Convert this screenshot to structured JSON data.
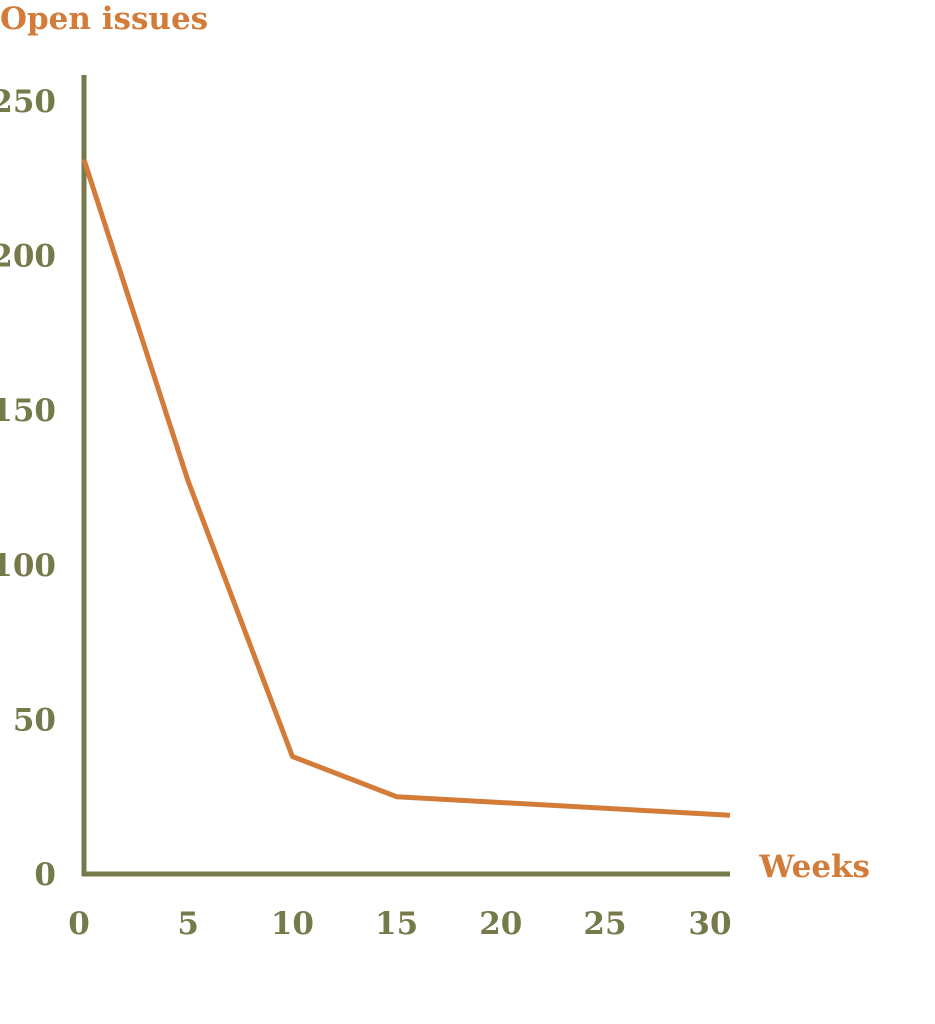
{
  "chart_data": {
    "type": "line",
    "ylabel": "Open issues",
    "xlabel": "Weeks",
    "x_ticks": [
      "0",
      "5",
      "10",
      "15",
      "20",
      "25",
      "30"
    ],
    "y_ticks": [
      "0",
      "50",
      "100",
      "150",
      "200",
      "250"
    ],
    "xlim": [
      0,
      31
    ],
    "ylim": [
      0,
      250
    ],
    "grid": false,
    "series": [
      {
        "x": [
          0,
          5,
          10,
          15,
          31
        ],
        "y": [
          231,
          127,
          38,
          25,
          19
        ]
      }
    ],
    "colors": {
      "line": "#d37b39",
      "axis": "#767a4a",
      "tick_text": "#767a4a",
      "axis_title": "#d37b39"
    }
  }
}
